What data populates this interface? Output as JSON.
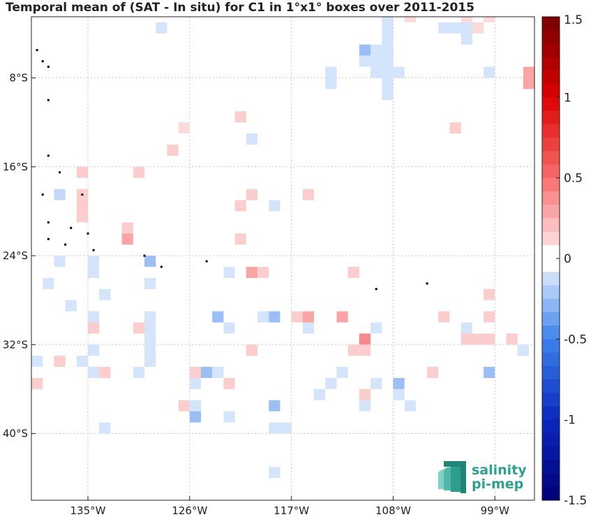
{
  "chart_data": {
    "type": "heatmap",
    "title": "Temporal mean of (SAT - In situ) for C1 in 1°x1° boxes over 2011-2015",
    "xlim": [
      -140,
      -95.5
    ],
    "ylim": [
      -46,
      -2.5
    ],
    "x_ticks": [
      {
        "value": -135,
        "label": "135°W"
      },
      {
        "value": -126,
        "label": "126°W"
      },
      {
        "value": -117,
        "label": "117°W"
      },
      {
        "value": -108,
        "label": "108°W"
      },
      {
        "value": -99,
        "label": "99°W"
      }
    ],
    "y_ticks": [
      {
        "value": -8,
        "label": "8°S"
      },
      {
        "value": -16,
        "label": "16°S"
      },
      {
        "value": -24,
        "label": "24°S"
      },
      {
        "value": -32,
        "label": "32°S"
      },
      {
        "value": -40,
        "label": "40°S"
      }
    ],
    "grid": true,
    "colorbar": {
      "range": [
        -1.5,
        1.5
      ],
      "ticks": [
        {
          "value": 1.5,
          "label": "1.5"
        },
        {
          "value": 1,
          "label": "1"
        },
        {
          "value": 0.5,
          "label": "0.5"
        },
        {
          "value": 0,
          "label": "0"
        },
        {
          "value": -0.5,
          "label": "-0.5"
        },
        {
          "value": -1,
          "label": "-1"
        },
        {
          "value": -1.5,
          "label": "-1.5"
        }
      ]
    },
    "cell_size_deg": 1,
    "cells": [
      {
        "lon": -128.5,
        "lat": -3.5,
        "value": -0.1
      },
      {
        "lon": -108.5,
        "lat": -2.5,
        "value": -0.1
      },
      {
        "lon": -108.5,
        "lat": -3.5,
        "value": -0.1
      },
      {
        "lon": -108.5,
        "lat": -4.5,
        "value": -0.1
      },
      {
        "lon": -108.5,
        "lat": -5.5,
        "value": -0.1
      },
      {
        "lon": -108.5,
        "lat": -6.5,
        "value": -0.1
      },
      {
        "lon": -108.5,
        "lat": -7.5,
        "value": -0.1
      },
      {
        "lon": -108.5,
        "lat": -8.5,
        "value": -0.1
      },
      {
        "lon": -108.5,
        "lat": -9.5,
        "value": -0.1
      },
      {
        "lon": -109.5,
        "lat": -5.5,
        "value": -0.1
      },
      {
        "lon": -109.5,
        "lat": -6.5,
        "value": -0.1
      },
      {
        "lon": -110.5,
        "lat": -5.5,
        "value": -0.25
      },
      {
        "lon": -110.5,
        "lat": -6.5,
        "value": -0.1
      },
      {
        "lon": -109.5,
        "lat": -7.5,
        "value": -0.1
      },
      {
        "lon": -107.5,
        "lat": -7.5,
        "value": -0.1
      },
      {
        "lon": -106.5,
        "lat": -2.5,
        "value": 0.1
      },
      {
        "lon": -103.5,
        "lat": -3.5,
        "value": -0.1
      },
      {
        "lon": -102.5,
        "lat": -3.5,
        "value": -0.1
      },
      {
        "lon": -101.5,
        "lat": -3.5,
        "value": -0.1
      },
      {
        "lon": -101.5,
        "lat": -2.5,
        "value": 0.1
      },
      {
        "lon": -101.5,
        "lat": -4.5,
        "value": -0.1
      },
      {
        "lon": -100.5,
        "lat": -3.5,
        "value": 0.1
      },
      {
        "lon": -99.5,
        "lat": -2.5,
        "value": 0.1
      },
      {
        "lon": -99.5,
        "lat": -7.5,
        "value": -0.1
      },
      {
        "lon": -113.5,
        "lat": -7.5,
        "value": -0.1
      },
      {
        "lon": -113.5,
        "lat": -8.5,
        "value": -0.1
      },
      {
        "lon": -96,
        "lat": -7.5,
        "value": 0.3
      },
      {
        "lon": -96,
        "lat": -8.5,
        "value": 0.3
      },
      {
        "lon": -121.5,
        "lat": -11.5,
        "value": 0.15
      },
      {
        "lon": -126.5,
        "lat": -12.5,
        "value": 0.1
      },
      {
        "lon": -120.5,
        "lat": -13.5,
        "value": -0.1
      },
      {
        "lon": -102.5,
        "lat": -12.5,
        "value": 0.15
      },
      {
        "lon": -127.5,
        "lat": -14.5,
        "value": 0.15
      },
      {
        "lon": -135.5,
        "lat": -16.5,
        "value": 0.15
      },
      {
        "lon": -130.5,
        "lat": -16.5,
        "value": 0.15
      },
      {
        "lon": -137.5,
        "lat": -18.5,
        "value": -0.15
      },
      {
        "lon": -135.5,
        "lat": -18.5,
        "value": 0.15
      },
      {
        "lon": -135.5,
        "lat": -19.5,
        "value": 0.15
      },
      {
        "lon": -135.5,
        "lat": -20.5,
        "value": 0.15
      },
      {
        "lon": -120.5,
        "lat": -18.5,
        "value": 0.15
      },
      {
        "lon": -121.5,
        "lat": -19.5,
        "value": 0.15
      },
      {
        "lon": -118.5,
        "lat": -19.5,
        "value": -0.1
      },
      {
        "lon": -115.5,
        "lat": -18.5,
        "value": 0.15
      },
      {
        "lon": -131.5,
        "lat": -21.5,
        "value": 0.15
      },
      {
        "lon": -131.5,
        "lat": -22.5,
        "value": 0.3
      },
      {
        "lon": -121.5,
        "lat": -22.5,
        "value": 0.15
      },
      {
        "lon": -137.5,
        "lat": -24.5,
        "value": -0.1
      },
      {
        "lon": -134.5,
        "lat": -24.5,
        "value": -0.1
      },
      {
        "lon": -134.5,
        "lat": -25.5,
        "value": -0.1
      },
      {
        "lon": -129.5,
        "lat": -24.5,
        "value": -0.25
      },
      {
        "lon": -122.5,
        "lat": -25.5,
        "value": -0.1
      },
      {
        "lon": -120.5,
        "lat": -25.5,
        "value": 0.3
      },
      {
        "lon": -119.5,
        "lat": -25.5,
        "value": 0.15
      },
      {
        "lon": -111.5,
        "lat": -25.5,
        "value": 0.15
      },
      {
        "lon": -138.5,
        "lat": -26.5,
        "value": -0.1
      },
      {
        "lon": -129.5,
        "lat": -26.5,
        "value": -0.1
      },
      {
        "lon": -133.5,
        "lat": -27.5,
        "value": -0.1
      },
      {
        "lon": -99.5,
        "lat": -27.5,
        "value": 0.15
      },
      {
        "lon": -136.5,
        "lat": -28.5,
        "value": -0.1
      },
      {
        "lon": -134.5,
        "lat": -29.5,
        "value": -0.1
      },
      {
        "lon": -134.5,
        "lat": -30.5,
        "value": 0.15
      },
      {
        "lon": -130.5,
        "lat": -30.5,
        "value": 0.15
      },
      {
        "lon": -129.5,
        "lat": -29.5,
        "value": -0.1
      },
      {
        "lon": -129.5,
        "lat": -30.5,
        "value": -0.1
      },
      {
        "lon": -129.5,
        "lat": -31.5,
        "value": -0.1
      },
      {
        "lon": -129.5,
        "lat": -32.5,
        "value": -0.1
      },
      {
        "lon": -129.5,
        "lat": -33.5,
        "value": -0.1
      },
      {
        "lon": -123.5,
        "lat": -29.5,
        "value": -0.25
      },
      {
        "lon": -122.5,
        "lat": -30.5,
        "value": -0.1
      },
      {
        "lon": -119.5,
        "lat": -29.5,
        "value": -0.1
      },
      {
        "lon": -118.5,
        "lat": -29.5,
        "value": -0.25
      },
      {
        "lon": -116.5,
        "lat": -29.5,
        "value": 0.15
      },
      {
        "lon": -115.5,
        "lat": -29.5,
        "value": 0.3
      },
      {
        "lon": -115.5,
        "lat": -30.5,
        "value": -0.1
      },
      {
        "lon": -112.5,
        "lat": -29.5,
        "value": 0.3
      },
      {
        "lon": -109.5,
        "lat": -30.5,
        "value": -0.1
      },
      {
        "lon": -103.5,
        "lat": -29.5,
        "value": 0.15
      },
      {
        "lon": -99.5,
        "lat": -29.5,
        "value": 0.15
      },
      {
        "lon": -101.5,
        "lat": -30.5,
        "value": -0.1
      },
      {
        "lon": -110.5,
        "lat": -31.5,
        "value": 0.4
      },
      {
        "lon": -100.5,
        "lat": -31.5,
        "value": 0.15
      },
      {
        "lon": -101.5,
        "lat": -31.5,
        "value": 0.15
      },
      {
        "lon": -99.5,
        "lat": -31.5,
        "value": 0.15
      },
      {
        "lon": -97.5,
        "lat": -31.5,
        "value": 0.15
      },
      {
        "lon": -134.5,
        "lat": -32.5,
        "value": -0.1
      },
      {
        "lon": -120.5,
        "lat": -32.5,
        "value": 0.15
      },
      {
        "lon": -111.5,
        "lat": -32.5,
        "value": 0.15
      },
      {
        "lon": -110.5,
        "lat": -32.5,
        "value": 0.15
      },
      {
        "lon": -96.5,
        "lat": -32.5,
        "value": -0.1
      },
      {
        "lon": -139.5,
        "lat": -33.5,
        "value": -0.1
      },
      {
        "lon": -137.5,
        "lat": -33.5,
        "value": 0.15
      },
      {
        "lon": -135.5,
        "lat": -33.5,
        "value": -0.1
      },
      {
        "lon": -134.5,
        "lat": -34.5,
        "value": -0.1
      },
      {
        "lon": -133.5,
        "lat": -34.5,
        "value": 0.15
      },
      {
        "lon": -130.5,
        "lat": -34.5,
        "value": -0.1
      },
      {
        "lon": -125.5,
        "lat": -34.5,
        "value": 0.15
      },
      {
        "lon": -124.5,
        "lat": -34.5,
        "value": -0.25
      },
      {
        "lon": -123.5,
        "lat": -34.5,
        "value": -0.1
      },
      {
        "lon": -112.5,
        "lat": -34.5,
        "value": -0.1
      },
      {
        "lon": -104.5,
        "lat": -34.5,
        "value": 0.15
      },
      {
        "lon": -99.5,
        "lat": -34.5,
        "value": -0.25
      },
      {
        "lon": -139.5,
        "lat": -35.5,
        "value": 0.15
      },
      {
        "lon": -125.5,
        "lat": -35.5,
        "value": -0.1
      },
      {
        "lon": -122.5,
        "lat": -35.5,
        "value": 0.15
      },
      {
        "lon": -113.5,
        "lat": -35.5,
        "value": -0.1
      },
      {
        "lon": -109.5,
        "lat": -35.5,
        "value": -0.1
      },
      {
        "lon": -107.5,
        "lat": -35.5,
        "value": -0.25
      },
      {
        "lon": -114.5,
        "lat": -36.5,
        "value": -0.1
      },
      {
        "lon": -110.5,
        "lat": -36.5,
        "value": 0.15
      },
      {
        "lon": -107.5,
        "lat": -36.5,
        "value": -0.1
      },
      {
        "lon": -126.5,
        "lat": -37.5,
        "value": 0.15
      },
      {
        "lon": -125.5,
        "lat": -37.5,
        "value": -0.1
      },
      {
        "lon": -118.5,
        "lat": -37.5,
        "value": -0.25
      },
      {
        "lon": -110.5,
        "lat": -37.5,
        "value": -0.1
      },
      {
        "lon": -106.5,
        "lat": -37.5,
        "value": -0.1
      },
      {
        "lon": -125.5,
        "lat": -38.5,
        "value": -0.25
      },
      {
        "lon": -122.5,
        "lat": -38.5,
        "value": -0.1
      },
      {
        "lon": -133.5,
        "lat": -39.5,
        "value": -0.1
      },
      {
        "lon": -118.5,
        "lat": -39.5,
        "value": -0.1
      },
      {
        "lon": -117.5,
        "lat": -39.5,
        "value": -0.1
      },
      {
        "lon": -118.5,
        "lat": -43.5,
        "value": -0.1
      }
    ],
    "land_cells": [
      {
        "lon": -139.5,
        "lat": -5.5
      },
      {
        "lon": -139.0,
        "lat": -6.5
      },
      {
        "lon": -138.5,
        "lat": -7.0
      },
      {
        "lon": -138.5,
        "lat": -10.0
      },
      {
        "lon": -138.5,
        "lat": -15.0
      },
      {
        "lon": -137.5,
        "lat": -16.5
      },
      {
        "lon": -139.0,
        "lat": -18.5
      },
      {
        "lon": -135.5,
        "lat": -18.5
      },
      {
        "lon": -138.5,
        "lat": -21.0
      },
      {
        "lon": -136.5,
        "lat": -21.5
      },
      {
        "lon": -135.0,
        "lat": -22.0
      },
      {
        "lon": -138.5,
        "lat": -22.5
      },
      {
        "lon": -137.0,
        "lat": -23.0
      },
      {
        "lon": -134.5,
        "lat": -23.5
      },
      {
        "lon": -130.0,
        "lat": -24.0
      },
      {
        "lon": -128.5,
        "lat": -25.0
      },
      {
        "lon": -124.5,
        "lat": -24.5
      },
      {
        "lon": -109.5,
        "lat": -27.0
      },
      {
        "lon": -105.0,
        "lat": -26.5
      }
    ]
  },
  "logo": {
    "line1": "salinity",
    "line2": "pi-mep"
  }
}
